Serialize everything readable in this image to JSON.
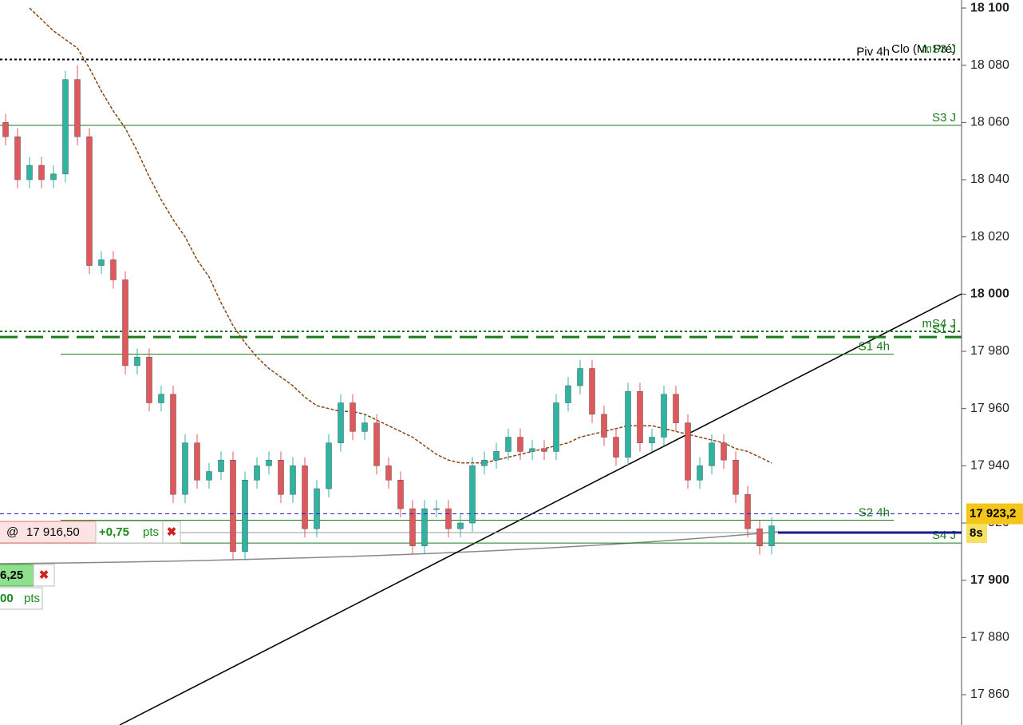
{
  "chart_data": {
    "type": "candlestick",
    "categories": [
      null,
      null,
      null,
      null,
      null,
      null,
      null,
      null,
      null,
      null,
      null,
      null,
      null,
      null,
      null,
      null,
      null,
      null,
      null,
      null,
      null,
      null,
      null,
      null,
      null,
      null,
      null,
      null,
      null,
      null,
      null,
      null,
      null,
      null,
      null,
      null,
      null,
      null,
      null,
      null,
      null,
      null,
      null,
      null,
      null,
      null,
      null,
      null,
      null,
      null,
      null,
      null,
      null,
      null,
      null,
      null,
      null,
      null,
      null,
      null,
      null,
      null,
      null,
      null,
      null
    ],
    "open": [
      18060,
      18055,
      18040,
      18045,
      18040,
      18042,
      18075,
      18055,
      18010,
      18012,
      18005,
      17975,
      17978,
      17962,
      17965,
      17930,
      17948,
      17935,
      17938,
      17942,
      17910,
      17935,
      17940,
      17942,
      17930,
      17940,
      17918,
      17932,
      17948,
      17962,
      17952,
      17955,
      17940,
      17935,
      17925,
      17912,
      17925,
      17925,
      17918,
      17920,
      17940,
      17942,
      17945,
      17950,
      17945,
      17946,
      17945,
      17962,
      17968,
      17974,
      17958,
      17950,
      17943,
      17966,
      17948,
      17950,
      17965,
      17955,
      17935,
      17940,
      17948,
      17942,
      17930,
      17918,
      17912
    ],
    "high": [
      18063,
      18058,
      18048,
      18048,
      18045,
      18078,
      18080,
      18058,
      18015,
      18015,
      18008,
      17981,
      17981,
      17968,
      17968,
      17951,
      17951,
      17941,
      17945,
      17945,
      17938,
      17943,
      17945,
      17945,
      17943,
      17943,
      17935,
      17951,
      17965,
      17965,
      17958,
      17958,
      17943,
      17938,
      17928,
      17928,
      17928,
      17928,
      17923,
      17943,
      17945,
      17948,
      17953,
      17953,
      17949,
      17949,
      17965,
      17971,
      17977,
      17977,
      17961,
      17953,
      17969,
      17969,
      17953,
      17968,
      17968,
      17958,
      17943,
      17951,
      17951,
      17945,
      17933,
      17921,
      17922
    ],
    "low": [
      18052,
      18037,
      18037,
      18037,
      18037,
      18039,
      18052,
      18007,
      18007,
      18002,
      17972,
      17972,
      17959,
      17959,
      17927,
      17927,
      17932,
      17932,
      17935,
      17907,
      17907,
      17932,
      17937,
      17927,
      17927,
      17915,
      17915,
      17929,
      17945,
      17949,
      17949,
      17937,
      17932,
      17922,
      17909,
      17909,
      17922,
      17915,
      17915,
      17917,
      17937,
      17939,
      17942,
      17942,
      17942,
      17942,
      17942,
      17959,
      17965,
      17955,
      17947,
      17940,
      17940,
      17945,
      17945,
      17947,
      17952,
      17932,
      17932,
      17937,
      17939,
      17927,
      17915,
      17909,
      17909
    ],
    "close": [
      18055,
      18040,
      18045,
      18040,
      18042,
      18075,
      18055,
      18010,
      18012,
      18005,
      17975,
      17978,
      17962,
      17965,
      17930,
      17948,
      17935,
      17938,
      17942,
      17910,
      17935,
      17940,
      17942,
      17930,
      17940,
      17918,
      17932,
      17948,
      17962,
      17952,
      17955,
      17940,
      17935,
      17925,
      17912,
      17925,
      17925,
      17918,
      17920,
      17940,
      17942,
      17945,
      17950,
      17945,
      17946,
      17945,
      17962,
      17968,
      17974,
      17958,
      17950,
      17943,
      17966,
      17948,
      17950,
      17965,
      17955,
      17935,
      17940,
      17948,
      17942,
      17930,
      17918,
      17912,
      17919
    ],
    "up_color": "#2db5a3",
    "down_color": "#e0575c",
    "moving_average": {
      "color": "#8b4513",
      "values": [
        null,
        null,
        18100,
        18096,
        18092,
        18089,
        18086,
        18079,
        18071,
        18064,
        18058,
        18050,
        18041,
        18033,
        18026,
        18020,
        18012,
        18006,
        17997,
        17989,
        17983,
        17978,
        17974,
        17971,
        17968,
        17964,
        17961,
        17960,
        17959,
        17959,
        17958,
        17956,
        17954,
        17952,
        17950,
        17947,
        17944,
        17942,
        17941,
        17941,
        17941,
        17942,
        17943,
        17944,
        17945,
        17946,
        17947,
        17948,
        17950,
        17951,
        17952,
        17953,
        17954,
        17954,
        17954,
        17953,
        17952,
        17951,
        17950,
        17949,
        17948,
        17946,
        17945,
        17943,
        17941
      ]
    },
    "ylim": [
      17849.4,
      18102.8
    ],
    "yticks": [
      {
        "value": 18100,
        "label": "18 100"
      },
      {
        "value": 18080,
        "label": "18 080"
      },
      {
        "value": 18060,
        "label": "18 060"
      },
      {
        "value": 18040,
        "label": "18 040"
      },
      {
        "value": 18020,
        "label": "18 020"
      },
      {
        "value": 18000,
        "label": "18 000"
      },
      {
        "value": 17980,
        "label": "17 980"
      },
      {
        "value": 17960,
        "label": "17 960"
      },
      {
        "value": 17940,
        "label": "17 940"
      },
      {
        "value": 17920,
        "label": "17 920"
      },
      {
        "value": 17900,
        "label": "17 900"
      },
      {
        "value": 17880,
        "label": "17 880"
      },
      {
        "value": 17860,
        "label": "17 860"
      }
    ],
    "levels": [
      {
        "name": "Piv 4h",
        "value": 18082,
        "color": "#000000",
        "style": "dotted"
      },
      {
        "name": "Clo (M. Pré)",
        "value": 18083,
        "color": "#000000",
        "style": "none"
      },
      {
        "name": "mS3 J",
        "value": 18083,
        "color": "#1a7a1a",
        "style": "none"
      },
      {
        "name": "S3 J",
        "value": 18059,
        "color": "#1a7a1a",
        "style": "solid"
      },
      {
        "name": "mS4 J",
        "value": 17987,
        "color": "#1a7a1a",
        "style": "dotted"
      },
      {
        "name": "S1 J",
        "value": 17985,
        "color": "#1a7a1a",
        "style": "dashed"
      },
      {
        "name": "S1 4h",
        "value": 17979,
        "color": "#1a7a1a",
        "style": "solid"
      },
      {
        "name": "S2 4h",
        "value": 17921,
        "color": "#1a7a1a",
        "style": "solid"
      },
      {
        "name": "S4 J",
        "value": 17913,
        "color": "#1a7a1a",
        "style": "solid"
      }
    ],
    "last_price": {
      "value": 17923.2,
      "value_label": "17 923,2",
      "color": "#2222cc",
      "timer": "8s"
    },
    "orders": [
      {
        "at": "@",
        "price": "17 916,50",
        "pnl": "+0,75",
        "unit": "pts"
      },
      {
        "price": "6,25",
        "pnl": "00",
        "unit": "pts"
      }
    ]
  }
}
